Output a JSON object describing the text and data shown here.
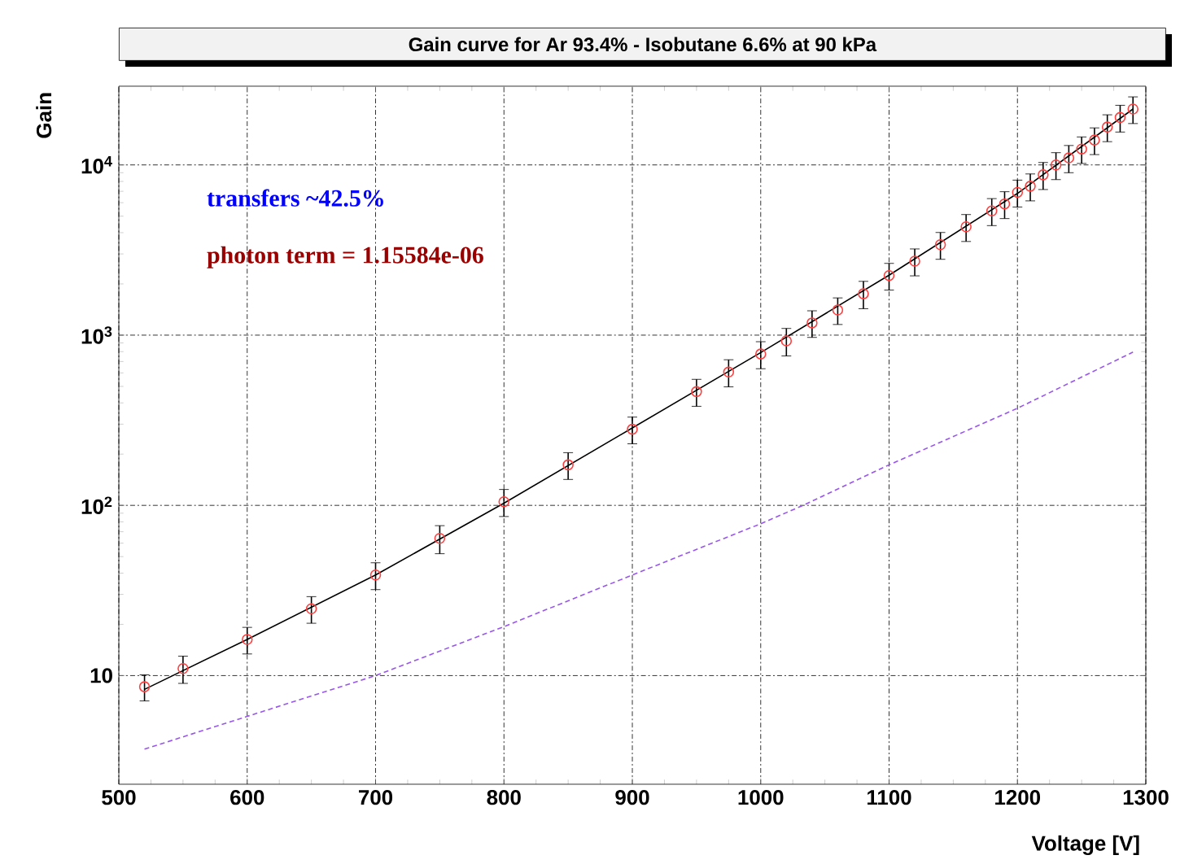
{
  "chart_data": {
    "type": "scatter",
    "title": "Gain curve for Ar 93.4% - Isobutane 6.6% at 90 kPa",
    "xlabel": "Voltage [V]",
    "ylabel": "Gain",
    "log": "y",
    "grid": true,
    "marker": "circle",
    "xlim": [
      500,
      1300
    ],
    "ylim": [
      2.3,
      29000
    ],
    "xticks": [
      500,
      600,
      700,
      800,
      900,
      1000,
      1100,
      1200,
      1300
    ],
    "yticks": [
      10,
      {
        "value": 100,
        "label": "10$^{2}$"
      },
      {
        "value": 1000,
        "label": "10$^{3}$"
      },
      {
        "value": 10000,
        "label": "10$^{4}$"
      }
    ],
    "annotations": [
      "transfers ~42.5%",
      "photon term = 1.15584e-06"
    ],
    "series": [
      {
        "color": "#ff4040",
        "x": [
          520,
          550,
          600,
          650,
          700,
          750,
          800,
          850,
          900,
          950,
          975,
          1000,
          1020,
          1040,
          1060,
          1080,
          1100,
          1120,
          1140,
          1160,
          1180,
          1190,
          1200,
          1210,
          1220,
          1230,
          1240,
          1250,
          1260,
          1270,
          1280,
          1290
        ],
        "values": [
          8.6,
          11,
          16.3,
          24.7,
          39,
          64,
          105,
          173,
          280,
          466,
          607,
          775,
          925,
          1180,
          1405,
          1750,
          2240,
          2720,
          3400,
          4330,
          5370,
          5900,
          6900,
          7500,
          8750,
          10000,
          11000,
          12400,
          14000,
          16700,
          19000,
          21300
        ],
        "errors": [
          1.5,
          2,
          2.9,
          4.4,
          7,
          12,
          19,
          31,
          50,
          84,
          110,
          140,
          170,
          210,
          250,
          320,
          400,
          490,
          610,
          780,
          970,
          1060,
          1240,
          1350,
          1580,
          1800,
          2000,
          2200,
          2500,
          3000,
          3400,
          3800
        ]
      },
      {
        "type": "line",
        "color": "#000000",
        "line_style": "solid",
        "marker": "none",
        "x": [
          520,
          600,
          700,
          800,
          900,
          1000,
          1100,
          1200,
          1290
        ],
        "values": [
          8.3,
          16.3,
          39,
          103,
          285,
          790,
          2250,
          6800,
          21300
        ]
      },
      {
        "type": "line",
        "color": "#9955ee",
        "line_style": "dashed",
        "marker": "none",
        "x": [
          520,
          600,
          700,
          800,
          900,
          1000,
          1033,
          1100,
          1200,
          1290
        ],
        "values": [
          3.7,
          5.76,
          10,
          19.4,
          39,
          78,
          100,
          173,
          372,
          795
        ]
      }
    ]
  }
}
